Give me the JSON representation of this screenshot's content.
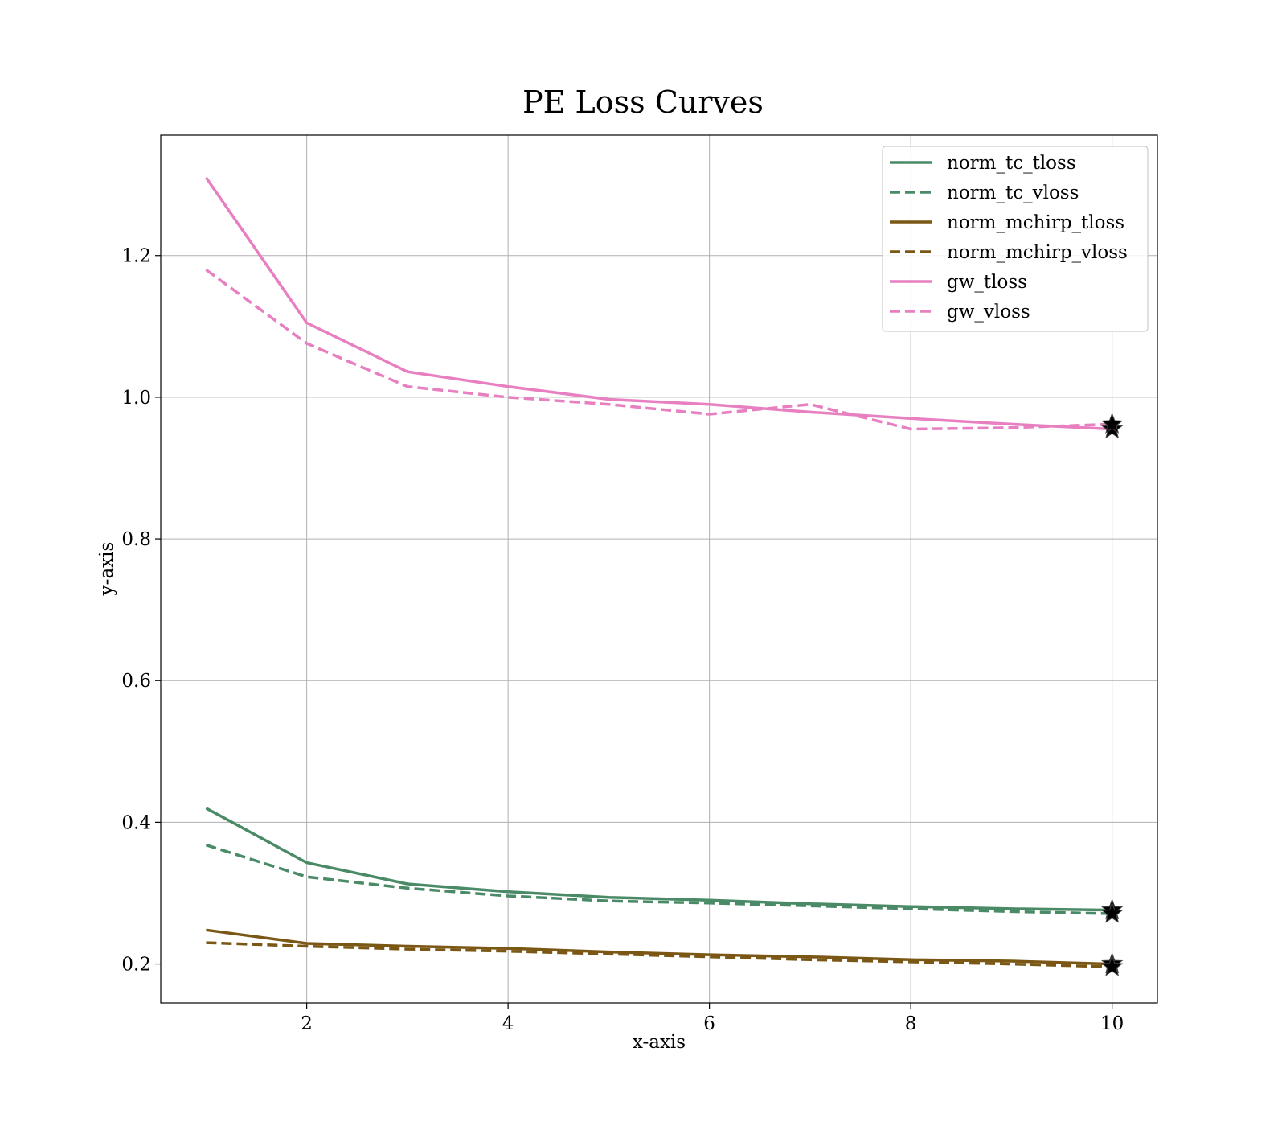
{
  "chart_data": {
    "type": "line",
    "title": "PE Loss Curves",
    "xlabel": "x-axis",
    "ylabel": "y-axis",
    "xlim": [
      0.55,
      10.45
    ],
    "ylim": [
      0.145,
      1.37
    ],
    "x_ticks": [
      2,
      4,
      6,
      8,
      10
    ],
    "y_ticks": [
      0.2,
      0.4,
      0.6,
      0.8,
      1.0,
      1.2
    ],
    "x_tick_labels": [
      "2",
      "4",
      "6",
      "8",
      "10"
    ],
    "y_tick_labels": [
      "0.2",
      "0.4",
      "0.6",
      "0.8",
      "1.0",
      "1.2"
    ],
    "grid": true,
    "legend_position": "top-right",
    "end_marker": "star",
    "x": [
      1,
      2,
      3,
      4,
      5,
      6,
      7,
      8,
      9,
      10
    ],
    "series": [
      {
        "name": "norm_tc_tloss",
        "color": "#4a8a66",
        "style": "solid",
        "values": [
          0.42,
          0.343,
          0.313,
          0.302,
          0.294,
          0.29,
          0.285,
          0.281,
          0.278,
          0.276
        ]
      },
      {
        "name": "norm_tc_vloss",
        "color": "#4a8a66",
        "style": "dashed",
        "values": [
          0.368,
          0.323,
          0.307,
          0.296,
          0.289,
          0.286,
          0.282,
          0.278,
          0.274,
          0.271
        ]
      },
      {
        "name": "norm_mchirp_tloss",
        "color": "#7a5714",
        "style": "solid",
        "values": [
          0.248,
          0.229,
          0.225,
          0.222,
          0.217,
          0.213,
          0.21,
          0.206,
          0.204,
          0.2
        ]
      },
      {
        "name": "norm_mchirp_vloss",
        "color": "#7a5714",
        "style": "dashed",
        "values": [
          0.23,
          0.225,
          0.221,
          0.218,
          0.214,
          0.21,
          0.206,
          0.203,
          0.2,
          0.196
        ]
      },
      {
        "name": "gw_tloss",
        "color": "#e77fc1",
        "style": "solid",
        "values": [
          1.31,
          1.105,
          1.036,
          1.015,
          0.997,
          0.99,
          0.979,
          0.97,
          0.962,
          0.955
        ]
      },
      {
        "name": "gw_vloss",
        "color": "#e77fc1",
        "style": "dashed",
        "values": [
          1.18,
          1.076,
          1.015,
          1.0,
          0.99,
          0.976,
          0.99,
          0.955,
          0.957,
          0.962
        ]
      }
    ]
  }
}
